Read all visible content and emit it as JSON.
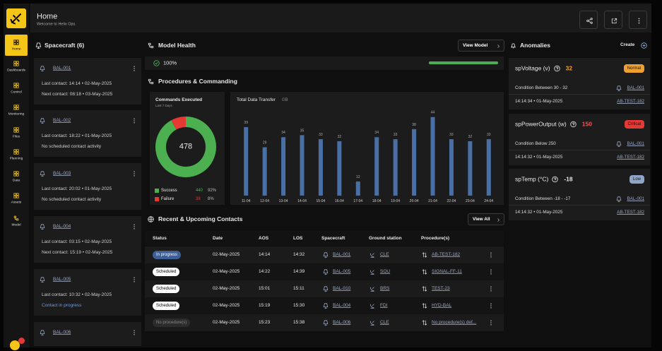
{
  "header": {
    "title": "Home",
    "subtitle": "Welcome to Helix Ops."
  },
  "nav": [
    "Home",
    "Dashboards",
    "Control",
    "Monitoring",
    "Files",
    "Planning",
    "Data",
    "Assets",
    "Model"
  ],
  "spacecraft": {
    "title": "Spacecraft (6)",
    "items": [
      {
        "name": "BAL-001",
        "lines": [
          "Last contact: 14:14 • 02-May-2025",
          "Next contact: 08:18 • 03-May-2025"
        ]
      },
      {
        "name": "BAL-002",
        "lines": [
          "Last contact: 18:22 • 01-May-2025",
          "No scheduled contact activity"
        ]
      },
      {
        "name": "BAL-003",
        "lines": [
          "Last contact: 20:02 • 01-May-2025",
          "No scheduled contact activity"
        ]
      },
      {
        "name": "BAL-004",
        "lines": [
          "Last contact: 03:15 • 02-May-2025",
          "Next contact: 15:19 • 02-May-2025"
        ]
      },
      {
        "name": "BAL-005",
        "lines": [
          "Last contact: 10:32 • 02-May-2025",
          "Contact in progress"
        ],
        "highlight_color": "#6f9be0"
      },
      {
        "name": "BAL-006",
        "lines": []
      }
    ]
  },
  "model_health": {
    "title": "Model Health",
    "button": "View Model",
    "value": 100,
    "value_label": "100%",
    "color": "#4caf50"
  },
  "procedures": {
    "title": "Procedures & Commanding",
    "commands": {
      "type": "pie",
      "title": "Commands Executed",
      "subtitle": "Last 7 Days",
      "total": 478,
      "categories": [
        "Success",
        "Failure"
      ],
      "values": [
        440,
        38
      ],
      "percent_labels": [
        "92%",
        "8%"
      ],
      "colors": [
        "#4caf50",
        "#e53935"
      ]
    },
    "data_transfer": {
      "type": "bar",
      "title": "Total Data Transfer",
      "unit": "GB",
      "categories": [
        "11-04",
        "12-04",
        "13-04",
        "14-04",
        "15-04",
        "16-04",
        "17-04",
        "18-04",
        "19-04",
        "20-04",
        "21-04",
        "22-04",
        "23-04",
        "24-04"
      ],
      "values": [
        39,
        29,
        34,
        35,
        33,
        32,
        12,
        34,
        33,
        38,
        44,
        33,
        32,
        33
      ],
      "color": "#4a6fa5",
      "ylim": [
        5,
        46
      ]
    }
  },
  "contacts": {
    "title": "Recent & Upcoming Contacts",
    "button": "View All",
    "columns": [
      "Status",
      "Date",
      "AOS",
      "LOS",
      "Spacecraft",
      "Ground station",
      "Procedure(s)"
    ],
    "rows": [
      [
        "In progress",
        "02-May-2025",
        "14:14",
        "14:32",
        "BAL-001",
        "CLE",
        "AB-TEST-182"
      ],
      [
        "Scheduled",
        "02-May-2025",
        "14:22",
        "14:39",
        "BAL-005",
        "SOU",
        "SIGNAL-FF-11"
      ],
      [
        "Scheduled",
        "02-May-2025",
        "15:01",
        "15:11",
        "BAL-010",
        "BRS",
        "TEST-23"
      ],
      [
        "Scheduled",
        "02-May-2025",
        "15:19",
        "15:30",
        "BAL-004",
        "FDI",
        "HYD-BAL"
      ],
      [
        "No procedure(s)",
        "02-May-2025",
        "15:23",
        "15:38",
        "BAL-006",
        "CLE",
        "No procedure(s) def..."
      ]
    ],
    "badge_colors": [
      "#3d5f96",
      "#ffffff",
      "#ffffff",
      "#ffffff",
      "#2c2c2c"
    ]
  },
  "anomalies": {
    "title": "Anomalies",
    "button": "Create",
    "items": [
      {
        "name": "spVoltage (v)",
        "value": 32,
        "value_color": "#f0a030",
        "status": "Normal",
        "badge_color": "#f0a030",
        "condition": "Condition Between 30 - 32",
        "spacecraft": "BAL-001",
        "time": "14:14:34 • 01-May-2025",
        "procedure": "AB-TEST-182"
      },
      {
        "name": "spPowerOutput (w)",
        "value": 150,
        "value_color": "#ff5252",
        "status": "Critical",
        "badge_color": "#e53935",
        "condition": "Condition Below 250",
        "spacecraft": "BAL-001",
        "time": "14:14:32 • 01-May-2025",
        "procedure": "AB-TEST-182"
      },
      {
        "name": "spTemp (°C)",
        "value": -18,
        "value_color": "#e8e8e8",
        "status": "Low",
        "badge_color": "#8fa6c8",
        "condition": "Condition Between -18 - -17",
        "spacecraft": "BAL-001",
        "time": "14:14:32 • 01-May-2025",
        "procedure": "AB-TEST-182"
      }
    ]
  }
}
